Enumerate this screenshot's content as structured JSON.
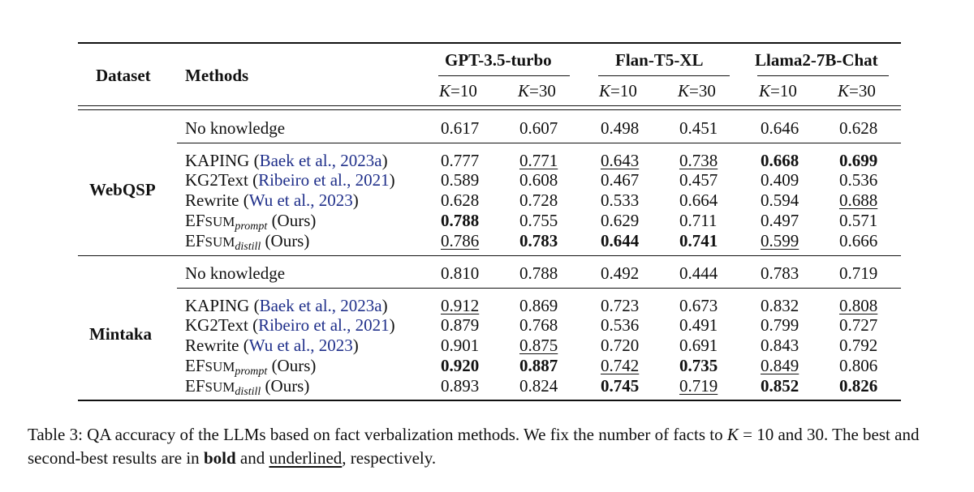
{
  "header": {
    "dataset_label": "Dataset",
    "methods_label": "Methods",
    "models": [
      "GPT-3.5-turbo",
      "Flan-T5-XL",
      "Llama2-7B-Chat"
    ],
    "k_var": "K",
    "k_values": [
      "=10",
      "=30",
      "=10",
      "=30",
      "=10",
      "=30"
    ]
  },
  "groups": [
    {
      "name": "WebQSP",
      "baseline": {
        "label": "No knowledge",
        "values": [
          "0.617",
          "0.607",
          "0.498",
          "0.451",
          "0.646",
          "0.628"
        ]
      },
      "rows": [
        {
          "pre": "KAPING (",
          "cite": "Baek et al., 2023a",
          "post": ")",
          "values": [
            "0.777",
            "0.771",
            "0.643",
            "0.738",
            "0.668",
            "0.699"
          ],
          "styles": [
            "",
            "u",
            "u",
            "u",
            "b",
            "b"
          ]
        },
        {
          "pre": "KG2Text (",
          "cite": "Ribeiro et al., 2021",
          "post": ")",
          "values": [
            "0.589",
            "0.608",
            "0.467",
            "0.457",
            "0.409",
            "0.536"
          ],
          "styles": [
            "",
            "",
            "",
            "",
            "",
            ""
          ]
        },
        {
          "pre": "Rewrite (",
          "cite": "Wu et al., 2023",
          "post": ")",
          "values": [
            "0.628",
            "0.728",
            "0.533",
            "0.664",
            "0.594",
            "0.688"
          ],
          "styles": [
            "",
            "",
            "",
            "",
            "",
            "u"
          ]
        },
        {
          "ef": "EF",
          "sc": "SUM",
          "sub": "prompt",
          "post": " (Ours)",
          "values": [
            "0.788",
            "0.755",
            "0.629",
            "0.711",
            "0.497",
            "0.571"
          ],
          "styles": [
            "b",
            "",
            "",
            "",
            "",
            ""
          ]
        },
        {
          "ef": "EF",
          "sc": "SUM",
          "sub": "distill",
          "post": " (Ours)",
          "values": [
            "0.786",
            "0.783",
            "0.644",
            "0.741",
            "0.599",
            "0.666"
          ],
          "styles": [
            "u",
            "b",
            "b",
            "b",
            "u",
            ""
          ]
        }
      ]
    },
    {
      "name": "Mintaka",
      "baseline": {
        "label": "No knowledge",
        "values": [
          "0.810",
          "0.788",
          "0.492",
          "0.444",
          "0.783",
          "0.719"
        ]
      },
      "rows": [
        {
          "pre": "KAPING (",
          "cite": "Baek et al., 2023a",
          "post": ")",
          "values": [
            "0.912",
            "0.869",
            "0.723",
            "0.673",
            "0.832",
            "0.808"
          ],
          "styles": [
            "u",
            "",
            "",
            "",
            "",
            "u"
          ]
        },
        {
          "pre": "KG2Text (",
          "cite": "Ribeiro et al., 2021",
          "post": ")",
          "values": [
            "0.879",
            "0.768",
            "0.536",
            "0.491",
            "0.799",
            "0.727"
          ],
          "styles": [
            "",
            "",
            "",
            "",
            "",
            ""
          ]
        },
        {
          "pre": "Rewrite (",
          "cite": "Wu et al., 2023",
          "post": ")",
          "values": [
            "0.901",
            "0.875",
            "0.720",
            "0.691",
            "0.843",
            "0.792"
          ],
          "styles": [
            "",
            "u",
            "",
            "",
            "",
            ""
          ]
        },
        {
          "ef": "EF",
          "sc": "SUM",
          "sub": "prompt",
          "post": " (Ours)",
          "values": [
            "0.920",
            "0.887",
            "0.742",
            "0.735",
            "0.849",
            "0.806"
          ],
          "styles": [
            "b",
            "b",
            "u",
            "b",
            "u",
            ""
          ]
        },
        {
          "ef": "EF",
          "sc": "SUM",
          "sub": "distill",
          "post": " (Ours)",
          "values": [
            "0.893",
            "0.824",
            "0.745",
            "0.719",
            "0.852",
            "0.826"
          ],
          "styles": [
            "",
            "",
            "b",
            "u",
            "b",
            "b"
          ]
        }
      ]
    }
  ],
  "caption": {
    "part1": "Table 3: QA accuracy of the LLMs based on fact verbalization methods. We fix the number of facts to ",
    "k_var": "K",
    "part2": " = 10 and 30. The best and second-best results are in ",
    "bold_word": "bold",
    "part3": " and ",
    "underlined_word": "underlined",
    "part4": ", respectively."
  }
}
